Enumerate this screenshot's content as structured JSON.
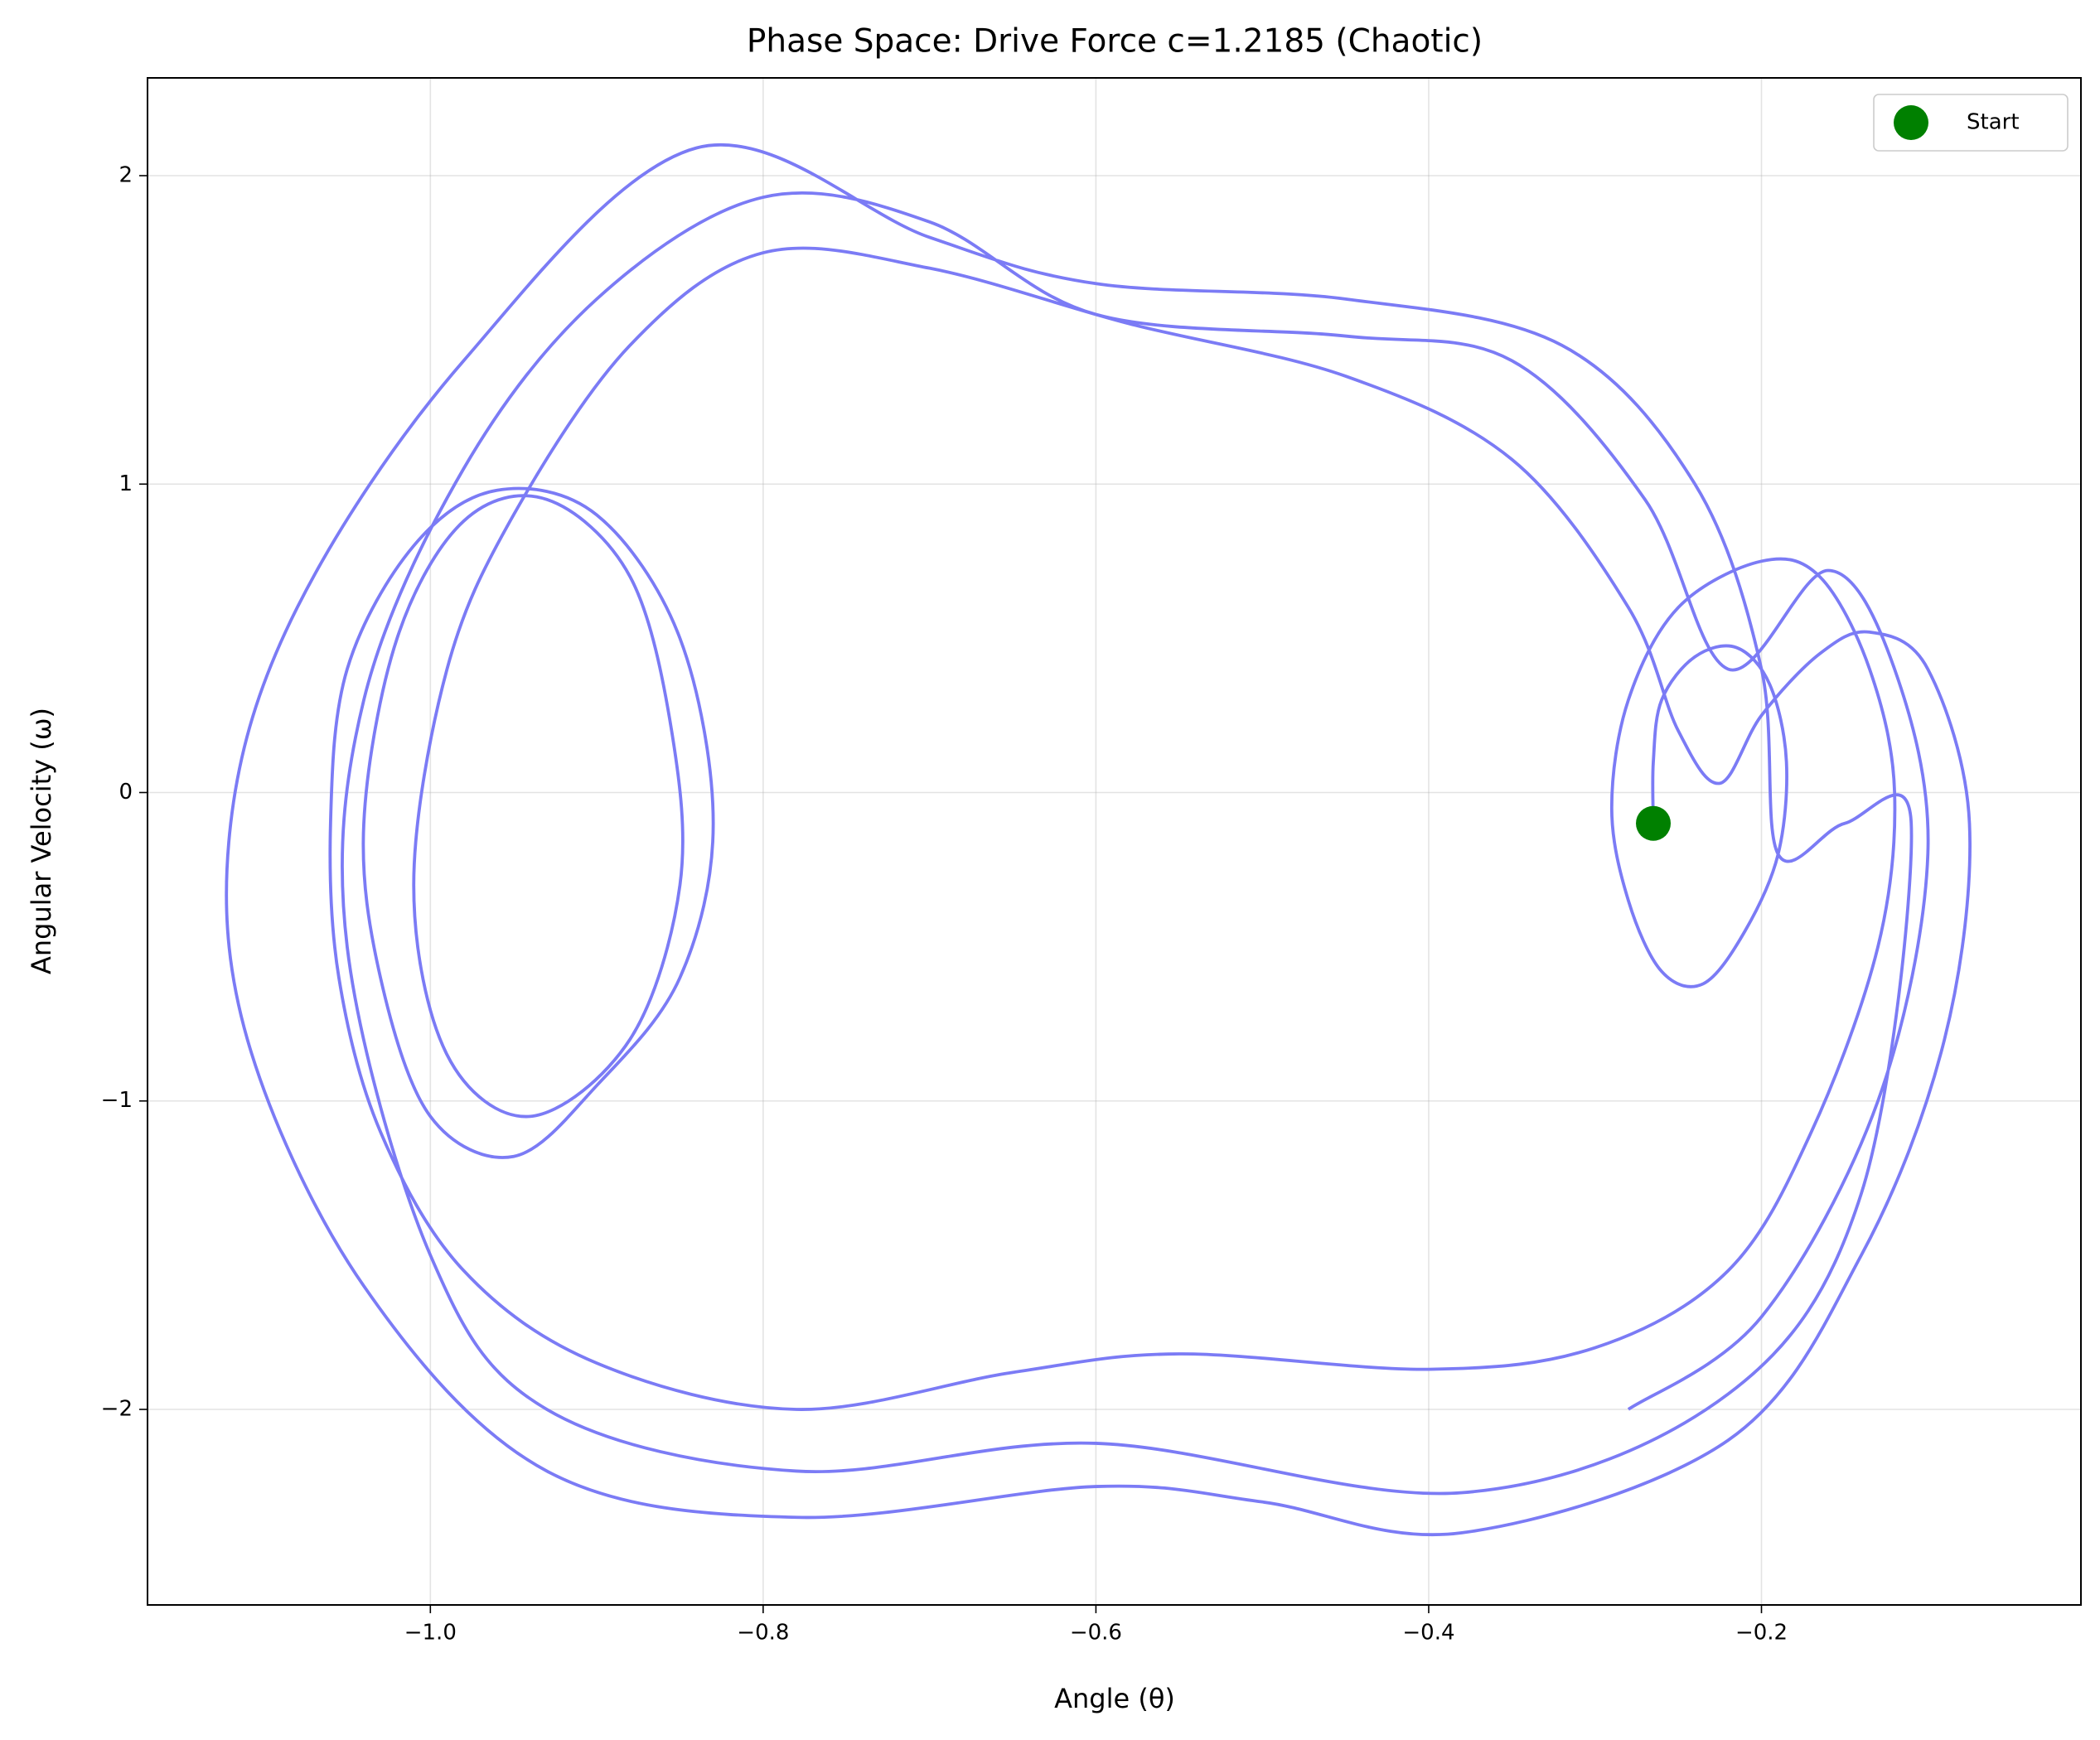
{
  "chart_data": {
    "type": "line",
    "title": "Phase Space: Drive Force c=1.2185 (Chaotic)",
    "x_label": "Angle (θ)",
    "y_label": "Angular Velocity (ω)",
    "xlim": [
      -1.17,
      -0.008
    ],
    "ylim": [
      -2.634,
      2.317
    ],
    "xticks": [
      {
        "value": -1.0,
        "label": "−1.0"
      },
      {
        "value": -0.8,
        "label": "−0.8"
      },
      {
        "value": -0.6,
        "label": "−0.6"
      },
      {
        "value": -0.4,
        "label": "−0.4"
      },
      {
        "value": -0.2,
        "label": "−0.2"
      }
    ],
    "yticks": [
      {
        "value": -2,
        "label": "−2"
      },
      {
        "value": -1,
        "label": "−1"
      },
      0,
      1,
      2
    ],
    "grid": true,
    "legend": "upper right",
    "series": [
      {
        "color": "#7b7bf5",
        "x": [
          -0.265,
          -0.265,
          -0.26,
          -0.24,
          -0.215,
          -0.195,
          -0.185,
          -0.19,
          -0.21,
          -0.235,
          -0.26,
          -0.28,
          -0.29,
          -0.28,
          -0.25,
          -0.2,
          -0.165,
          -0.135,
          -0.12,
          -0.13,
          -0.17,
          -0.22,
          -0.3,
          -0.4,
          -0.55,
          -0.65,
          -0.78,
          -0.9,
          -0.98,
          -1.03,
          -1.055,
          -1.06,
          -1.05,
          -1.01,
          -0.96,
          -0.9,
          -0.85,
          -0.83,
          -0.85,
          -0.9,
          -0.95,
          -1.0,
          -1.03,
          -1.04,
          -1.02,
          -0.98,
          -0.93,
          -0.88,
          -0.855,
          -0.85,
          -0.88,
          -0.94,
          -0.99,
          -1.01,
          -0.99,
          -0.95,
          -0.88,
          -0.8,
          -0.7,
          -0.58,
          -0.45,
          -0.35,
          -0.28,
          -0.25,
          -0.225,
          -0.2,
          -0.165,
          -0.135,
          -0.1,
          -0.075,
          -0.09,
          -0.14,
          -0.22,
          -0.38,
          -0.5,
          -0.6,
          -0.78,
          -0.93,
          -1.04,
          -1.11,
          -1.12,
          -1.08,
          -0.98,
          -0.84,
          -0.7,
          -0.6,
          -0.45,
          -0.32,
          -0.24,
          -0.2,
          -0.19,
          -0.15,
          -0.11,
          -0.14,
          -0.22,
          -0.38,
          -0.6,
          -0.78,
          -0.93,
          -1.0,
          -1.05,
          -1.04,
          -0.98,
          -0.9,
          -0.8,
          -0.7,
          -0.6,
          -0.45,
          -0.35,
          -0.27,
          -0.22,
          -0.16,
          -0.12,
          -0.1,
          -0.13,
          -0.2,
          -0.28
        ],
        "values": [
          -0.1,
          0.1,
          0.3,
          0.44,
          0.47,
          0.35,
          0.1,
          -0.2,
          -0.45,
          -0.62,
          -0.58,
          -0.35,
          -0.05,
          0.3,
          0.6,
          0.75,
          0.7,
          0.4,
          0.0,
          -0.5,
          -1.1,
          -1.55,
          -1.8,
          -1.87,
          -1.82,
          -1.88,
          -2.0,
          -1.85,
          -1.55,
          -1.1,
          -0.6,
          -0.1,
          0.4,
          0.8,
          0.98,
          0.9,
          0.5,
          -0.1,
          -0.6,
          -0.95,
          -1.18,
          -1.05,
          -0.6,
          -0.1,
          0.5,
          0.88,
          0.95,
          0.7,
          0.2,
          -0.3,
          -0.8,
          -1.05,
          -0.85,
          -0.3,
          0.4,
          0.9,
          1.45,
          1.75,
          1.7,
          1.52,
          1.35,
          1.08,
          0.6,
          0.2,
          0.03,
          0.25,
          0.45,
          0.52,
          0.4,
          -0.1,
          -0.8,
          -1.5,
          -2.1,
          -2.4,
          -2.3,
          -2.25,
          -2.35,
          -2.2,
          -1.6,
          -0.8,
          -0.1,
          0.6,
          1.4,
          2.09,
          1.8,
          1.65,
          1.6,
          1.45,
          1.0,
          0.4,
          -0.2,
          -0.1,
          -0.1,
          -1.3,
          -1.95,
          -2.27,
          -2.11,
          -2.2,
          -2.0,
          -1.5,
          -0.5,
          0.3,
          1.05,
          1.6,
          1.93,
          1.85,
          1.55,
          1.48,
          1.4,
          0.95,
          0.4,
          0.72,
          0.4,
          -0.2,
          -1.0,
          -1.7,
          -2.0
        ]
      },
      {
        "name": "Start",
        "color": "#008000",
        "x": [
          -0.265
        ],
        "values": [
          -0.1
        ]
      }
    ]
  }
}
